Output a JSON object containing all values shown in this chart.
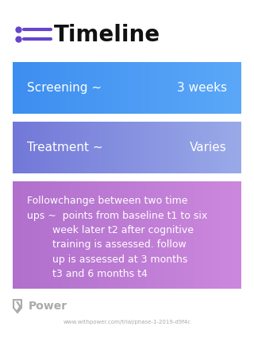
{
  "title": "Timeline",
  "bg_color": "#ffffff",
  "title_color": "#111111",
  "title_fontsize": 20,
  "icon_color": "#6644cc",
  "rows": [
    {
      "label": "Screening ~",
      "value": "3 weeks",
      "color_left": "#3d8ef0",
      "color_right": "#5ba8f8",
      "text_color": "#ffffff",
      "font_size": 11,
      "multiline": false
    },
    {
      "label": "Treatment ~",
      "value": "Varies",
      "color_left": "#7278d8",
      "color_right": "#9aaae8",
      "text_color": "#ffffff",
      "font_size": 11,
      "multiline": false
    },
    {
      "label": "Followchange between two time\nups ~  points from baseline t1 to six\n        week later t2 after cognitive\n        training is assessed. follow\n        up is assessed at 3 months\n        t3 and 6 months t4",
      "value": "",
      "color_left": "#b070cc",
      "color_right": "#cc88dd",
      "text_color": "#ffffff",
      "font_size": 9,
      "multiline": true
    }
  ],
  "footer_logo_text": "Power",
  "footer_url": "www.withpower.com/trial/phase-1-2019-d9f4c",
  "footer_color": "#aaaaaa"
}
